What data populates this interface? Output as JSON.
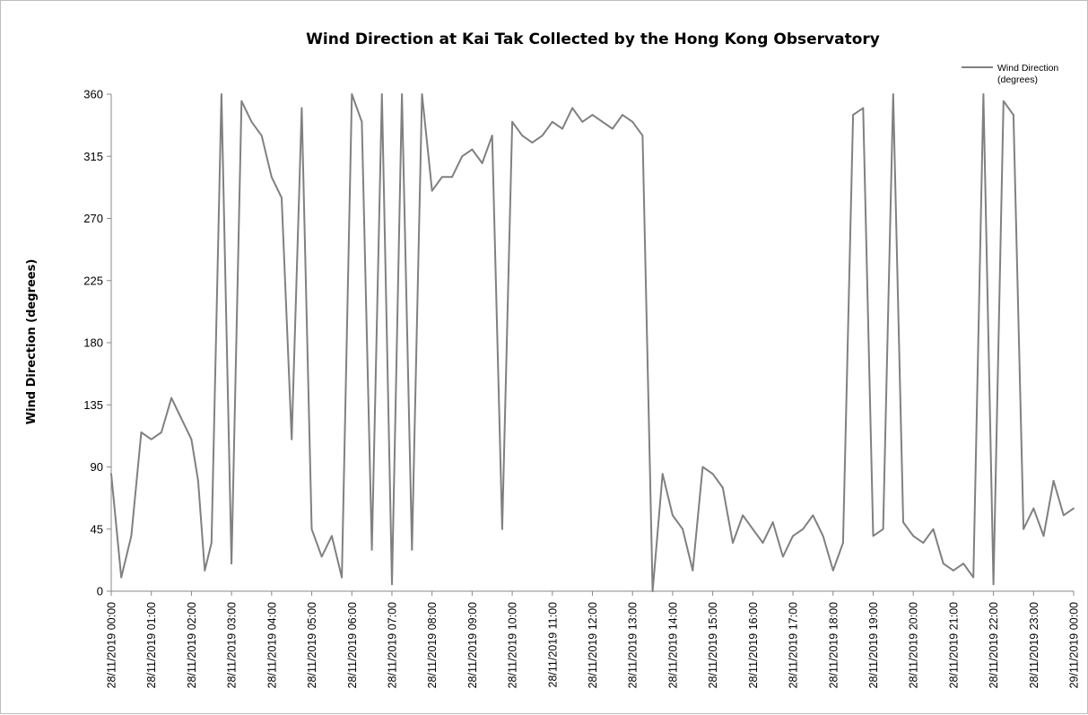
{
  "chart_data": {
    "type": "line",
    "title": "Wind Direction at Kai Tak Collected by the Hong Kong Observatory",
    "xlabel": "",
    "ylabel": "Wind Direction (degrees)",
    "ylim": [
      0,
      360
    ],
    "yticks": [
      0,
      45,
      90,
      135,
      180,
      225,
      270,
      315,
      360
    ],
    "grid": false,
    "legend_position": "top-right",
    "x_ticks": [
      "28/11/2019 00:00",
      "28/11/2019 01:00",
      "28/11/2019 02:00",
      "28/11/2019 03:00",
      "28/11/2019 04:00",
      "28/11/2019 05:00",
      "28/11/2019 06:00",
      "28/11/2019 07:00",
      "28/11/2019 08:00",
      "28/11/2019 09:00",
      "28/11/2019 10:00",
      "28/11/2019 11:00",
      "28/11/2019 12:00",
      "28/11/2019 13:00",
      "28/11/2019 14:00",
      "28/11/2019 15:00",
      "28/11/2019 16:00",
      "28/11/2019 17:00",
      "28/11/2019 18:00",
      "28/11/2019 19:00",
      "28/11/2019 20:00",
      "28/11/2019 21:00",
      "28/11/2019 22:00",
      "28/11/2019 23:00",
      "29/11/2019 00:00"
    ],
    "series": [
      {
        "name": "Wind Direction (degrees)",
        "color": "#808080",
        "x": [
          "28/11/2019 00:00",
          "28/11/2019 00:15",
          "28/11/2019 00:30",
          "28/11/2019 00:45",
          "28/11/2019 01:00",
          "28/11/2019 01:15",
          "28/11/2019 01:30",
          "28/11/2019 01:45",
          "28/11/2019 02:00",
          "28/11/2019 02:10",
          "28/11/2019 02:20",
          "28/11/2019 02:30",
          "28/11/2019 02:45",
          "28/11/2019 03:00",
          "28/11/2019 03:15",
          "28/11/2019 03:30",
          "28/11/2019 03:45",
          "28/11/2019 04:00",
          "28/11/2019 04:15",
          "28/11/2019 04:30",
          "28/11/2019 04:45",
          "28/11/2019 05:00",
          "28/11/2019 05:15",
          "28/11/2019 05:30",
          "28/11/2019 05:45",
          "28/11/2019 06:00",
          "28/11/2019 06:15",
          "28/11/2019 06:30",
          "28/11/2019 06:45",
          "28/11/2019 07:00",
          "28/11/2019 07:15",
          "28/11/2019 07:30",
          "28/11/2019 07:45",
          "28/11/2019 08:00",
          "28/11/2019 08:15",
          "28/11/2019 08:30",
          "28/11/2019 08:45",
          "28/11/2019 09:00",
          "28/11/2019 09:15",
          "28/11/2019 09:30",
          "28/11/2019 09:45",
          "28/11/2019 10:00",
          "28/11/2019 10:15",
          "28/11/2019 10:30",
          "28/11/2019 10:45",
          "28/11/2019 11:00",
          "28/11/2019 11:15",
          "28/11/2019 11:30",
          "28/11/2019 11:45",
          "28/11/2019 12:00",
          "28/11/2019 12:15",
          "28/11/2019 12:30",
          "28/11/2019 12:45",
          "28/11/2019 13:00",
          "28/11/2019 13:15",
          "28/11/2019 13:30",
          "28/11/2019 13:45",
          "28/11/2019 14:00",
          "28/11/2019 14:15",
          "28/11/2019 14:30",
          "28/11/2019 14:45",
          "28/11/2019 15:00",
          "28/11/2019 15:15",
          "28/11/2019 15:30",
          "28/11/2019 15:45",
          "28/11/2019 16:00",
          "28/11/2019 16:15",
          "28/11/2019 16:30",
          "28/11/2019 16:45",
          "28/11/2019 17:00",
          "28/11/2019 17:15",
          "28/11/2019 17:30",
          "28/11/2019 17:45",
          "28/11/2019 18:00",
          "28/11/2019 18:15",
          "28/11/2019 18:30",
          "28/11/2019 18:45",
          "28/11/2019 19:00",
          "28/11/2019 19:15",
          "28/11/2019 19:30",
          "28/11/2019 19:45",
          "28/11/2019 20:00",
          "28/11/2019 20:15",
          "28/11/2019 20:30",
          "28/11/2019 20:45",
          "28/11/2019 21:00",
          "28/11/2019 21:15",
          "28/11/2019 21:30",
          "28/11/2019 21:45",
          "28/11/2019 22:00",
          "28/11/2019 22:15",
          "28/11/2019 22:30",
          "28/11/2019 22:45",
          "28/11/2019 23:00",
          "28/11/2019 23:15",
          "28/11/2019 23:30",
          "28/11/2019 23:45",
          "29/11/2019 00:00"
        ],
        "values": [
          85,
          10,
          40,
          115,
          110,
          115,
          140,
          125,
          110,
          80,
          15,
          35,
          360,
          20,
          355,
          340,
          330,
          300,
          285,
          110,
          350,
          45,
          25,
          40,
          10,
          360,
          340,
          30,
          360,
          5,
          360,
          30,
          360,
          290,
          300,
          300,
          315,
          320,
          310,
          330,
          45,
          340,
          330,
          325,
          330,
          340,
          335,
          350,
          340,
          345,
          340,
          335,
          345,
          340,
          330,
          0,
          85,
          55,
          45,
          15,
          90,
          85,
          75,
          35,
          55,
          45,
          35,
          50,
          25,
          40,
          45,
          55,
          40,
          15,
          35,
          345,
          350,
          40,
          45,
          360,
          50,
          40,
          35,
          45,
          20,
          15,
          20,
          10,
          360,
          5,
          355,
          345,
          45,
          60,
          40,
          80,
          55,
          60
        ]
      }
    ]
  }
}
